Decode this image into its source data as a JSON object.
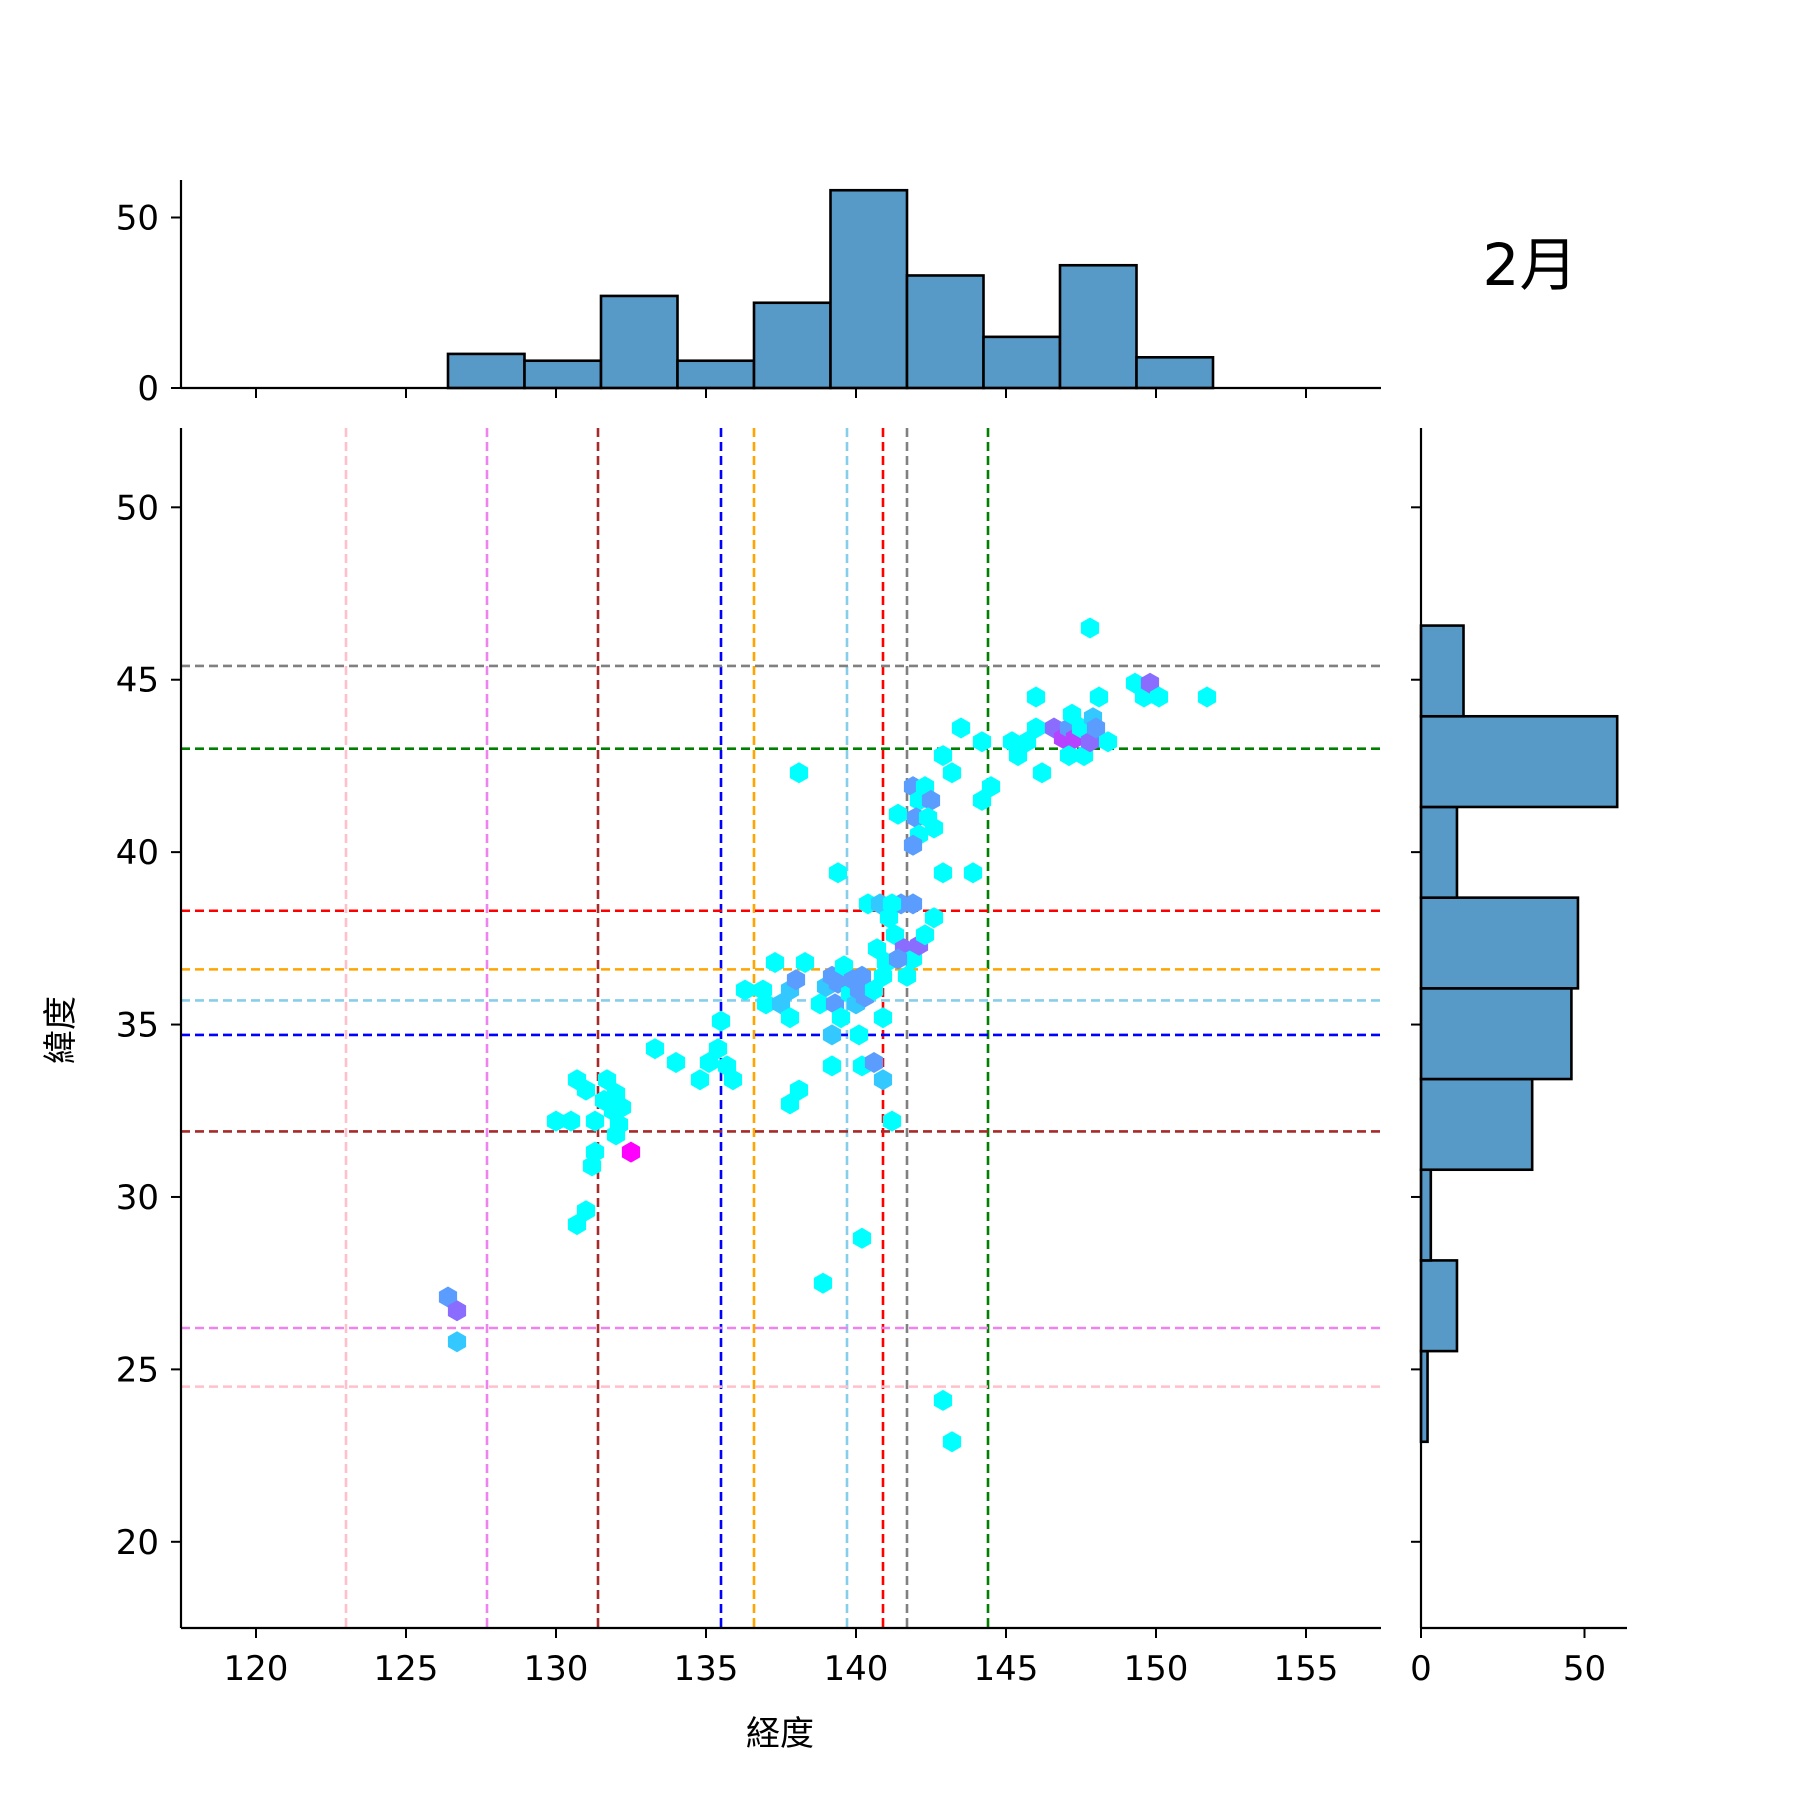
{
  "chart_data": {
    "type": "hexbin",
    "kind": "joint-plot",
    "title": "2月",
    "xlabel": "経度",
    "ylabel": "緯度",
    "xlim": [
      117.5,
      157.5
    ],
    "ylim": [
      17.5,
      52.3
    ],
    "xticks": [
      120,
      125,
      130,
      135,
      140,
      145,
      150,
      155
    ],
    "yticks": [
      20,
      25,
      30,
      35,
      40,
      45,
      50
    ],
    "grid": false,
    "colors": {
      "hist_fill": "#5799c7",
      "hist_edge": "#000000",
      "hex_low": "#00ffff",
      "hex_high": "#ff00ff"
    },
    "reference_lines": [
      {
        "color": "#ffc0cb",
        "x": 123.0,
        "y": 24.5
      },
      {
        "color": "#ee82ee",
        "x": 127.7,
        "y": 26.2
      },
      {
        "color": "#a52a2a",
        "x": 131.4,
        "y": 31.9
      },
      {
        "color": "#0000ff",
        "x": 135.5,
        "y": 34.7
      },
      {
        "color": "#ffa500",
        "x": 136.6,
        "y": 36.6
      },
      {
        "color": "#87ceeb",
        "x": 139.7,
        "y": 35.7
      },
      {
        "color": "#ff0000",
        "x": 140.9,
        "y": 38.3
      },
      {
        "color": "#808080",
        "x": 141.7,
        "y": 45.4
      },
      {
        "color": "#008000",
        "x": 144.4,
        "y": 43.0
      }
    ],
    "top_hist": {
      "yticks": [
        0,
        50
      ],
      "bins": [
        {
          "x0": 126.4,
          "x1": 128.95,
          "count": 10
        },
        {
          "x0": 128.95,
          "x1": 131.5,
          "count": 8
        },
        {
          "x0": 131.5,
          "x1": 134.05,
          "count": 27
        },
        {
          "x0": 134.05,
          "x1": 136.6,
          "count": 8
        },
        {
          "x0": 136.6,
          "x1": 139.15,
          "count": 25
        },
        {
          "x0": 139.15,
          "x1": 141.7,
          "count": 58
        },
        {
          "x0": 141.7,
          "x1": 144.25,
          "count": 33
        },
        {
          "x0": 144.25,
          "x1": 146.8,
          "count": 15
        },
        {
          "x0": 146.8,
          "x1": 149.35,
          "count": 36
        },
        {
          "x0": 149.35,
          "x1": 151.9,
          "count": 9
        }
      ]
    },
    "right_hist": {
      "xticks": [
        0,
        50
      ],
      "bins": [
        {
          "y0": 22.9,
          "y1": 25.53,
          "count": 2
        },
        {
          "y0": 25.53,
          "y1": 28.16,
          "count": 11
        },
        {
          "y0": 28.16,
          "y1": 30.79,
          "count": 3
        },
        {
          "y0": 30.79,
          "y1": 33.42,
          "count": 34
        },
        {
          "y0": 33.42,
          "y1": 36.05,
          "count": 46
        },
        {
          "y0": 36.05,
          "y1": 38.68,
          "count": 48
        },
        {
          "y0": 38.68,
          "y1": 41.31,
          "count": 11
        },
        {
          "y0": 41.31,
          "y1": 43.94,
          "count": 60
        },
        {
          "y0": 43.94,
          "y1": 46.57,
          "count": 13
        }
      ]
    },
    "hexbins": [
      {
        "x": 126.4,
        "y": 27.1,
        "c": 2
      },
      {
        "x": 126.7,
        "y": 26.7,
        "c": 3
      },
      {
        "x": 126.7,
        "y": 25.8,
        "c": 1
      },
      {
        "x": 130.0,
        "y": 32.2,
        "c": 0
      },
      {
        "x": 130.5,
        "y": 32.2,
        "c": 0
      },
      {
        "x": 130.7,
        "y": 33.4,
        "c": 0
      },
      {
        "x": 131.0,
        "y": 33.1,
        "c": 0
      },
      {
        "x": 131.3,
        "y": 32.2,
        "c": 0
      },
      {
        "x": 131.6,
        "y": 32.8,
        "c": 0
      },
      {
        "x": 131.7,
        "y": 33.4,
        "c": 0
      },
      {
        "x": 131.9,
        "y": 32.5,
        "c": 0
      },
      {
        "x": 132.0,
        "y": 33.0,
        "c": 0
      },
      {
        "x": 132.1,
        "y": 32.1,
        "c": 0
      },
      {
        "x": 132.2,
        "y": 32.6,
        "c": 0
      },
      {
        "x": 132.0,
        "y": 31.8,
        "c": 0
      },
      {
        "x": 131.3,
        "y": 31.3,
        "c": 0
      },
      {
        "x": 131.2,
        "y": 30.9,
        "c": 0
      },
      {
        "x": 132.5,
        "y": 31.3,
        "c": 5
      },
      {
        "x": 131.0,
        "y": 29.6,
        "c": 0
      },
      {
        "x": 130.7,
        "y": 29.2,
        "c": 0
      },
      {
        "x": 133.3,
        "y": 34.3,
        "c": 0
      },
      {
        "x": 134.0,
        "y": 33.9,
        "c": 0
      },
      {
        "x": 134.8,
        "y": 33.4,
        "c": 0
      },
      {
        "x": 135.1,
        "y": 33.9,
        "c": 0
      },
      {
        "x": 135.4,
        "y": 34.3,
        "c": 0
      },
      {
        "x": 135.5,
        "y": 35.1,
        "c": 0
      },
      {
        "x": 135.7,
        "y": 33.8,
        "c": 0
      },
      {
        "x": 135.9,
        "y": 33.4,
        "c": 0
      },
      {
        "x": 136.3,
        "y": 36.0,
        "c": 0
      },
      {
        "x": 136.9,
        "y": 36.0,
        "c": 0
      },
      {
        "x": 137.0,
        "y": 35.6,
        "c": 0
      },
      {
        "x": 137.3,
        "y": 36.8,
        "c": 0
      },
      {
        "x": 137.5,
        "y": 35.6,
        "c": 1
      },
      {
        "x": 137.8,
        "y": 36.0,
        "c": 1
      },
      {
        "x": 138.0,
        "y": 36.3,
        "c": 2
      },
      {
        "x": 137.8,
        "y": 35.2,
        "c": 0
      },
      {
        "x": 138.3,
        "y": 36.8,
        "c": 0
      },
      {
        "x": 138.1,
        "y": 42.3,
        "c": 0
      },
      {
        "x": 137.8,
        "y": 32.7,
        "c": 0
      },
      {
        "x": 138.1,
        "y": 33.1,
        "c": 0
      },
      {
        "x": 138.8,
        "y": 35.6,
        "c": 0
      },
      {
        "x": 139.0,
        "y": 36.1,
        "c": 1
      },
      {
        "x": 139.2,
        "y": 36.4,
        "c": 2
      },
      {
        "x": 139.3,
        "y": 35.6,
        "c": 2
      },
      {
        "x": 139.4,
        "y": 36.2,
        "c": 2
      },
      {
        "x": 139.6,
        "y": 36.7,
        "c": 0
      },
      {
        "x": 139.8,
        "y": 35.9,
        "c": 0
      },
      {
        "x": 139.9,
        "y": 36.3,
        "c": 2
      },
      {
        "x": 140.0,
        "y": 35.6,
        "c": 1
      },
      {
        "x": 140.1,
        "y": 36.0,
        "c": 2
      },
      {
        "x": 140.3,
        "y": 35.8,
        "c": 2
      },
      {
        "x": 140.2,
        "y": 36.4,
        "c": 2
      },
      {
        "x": 139.2,
        "y": 34.7,
        "c": 1
      },
      {
        "x": 139.5,
        "y": 35.2,
        "c": 0
      },
      {
        "x": 140.1,
        "y": 34.7,
        "c": 0
      },
      {
        "x": 139.2,
        "y": 33.8,
        "c": 0
      },
      {
        "x": 140.2,
        "y": 33.8,
        "c": 0
      },
      {
        "x": 140.6,
        "y": 33.9,
        "c": 2
      },
      {
        "x": 140.9,
        "y": 33.4,
        "c": 1
      },
      {
        "x": 141.2,
        "y": 32.2,
        "c": 0
      },
      {
        "x": 139.4,
        "y": 39.4,
        "c": 0
      },
      {
        "x": 140.4,
        "y": 38.5,
        "c": 0
      },
      {
        "x": 140.8,
        "y": 38.5,
        "c": 1
      },
      {
        "x": 141.1,
        "y": 38.1,
        "c": 0
      },
      {
        "x": 141.3,
        "y": 37.6,
        "c": 0
      },
      {
        "x": 140.7,
        "y": 37.2,
        "c": 0
      },
      {
        "x": 141.0,
        "y": 36.8,
        "c": 0
      },
      {
        "x": 140.9,
        "y": 36.4,
        "c": 0
      },
      {
        "x": 140.6,
        "y": 36.0,
        "c": 0
      },
      {
        "x": 140.9,
        "y": 35.2,
        "c": 0
      },
      {
        "x": 141.5,
        "y": 38.5,
        "c": 2
      },
      {
        "x": 141.2,
        "y": 38.5,
        "c": 0
      },
      {
        "x": 141.9,
        "y": 38.5,
        "c": 2
      },
      {
        "x": 141.6,
        "y": 37.2,
        "c": 3
      },
      {
        "x": 141.9,
        "y": 36.9,
        "c": 0
      },
      {
        "x": 142.1,
        "y": 37.3,
        "c": 3
      },
      {
        "x": 142.3,
        "y": 37.6,
        "c": 0
      },
      {
        "x": 142.6,
        "y": 38.1,
        "c": 0
      },
      {
        "x": 141.7,
        "y": 36.4,
        "c": 0
      },
      {
        "x": 141.4,
        "y": 36.9,
        "c": 2
      },
      {
        "x": 141.4,
        "y": 41.1,
        "c": 0
      },
      {
        "x": 141.9,
        "y": 41.9,
        "c": 2
      },
      {
        "x": 142.3,
        "y": 41.9,
        "c": 0
      },
      {
        "x": 142.1,
        "y": 41.5,
        "c": 0
      },
      {
        "x": 142.5,
        "y": 41.5,
        "c": 2
      },
      {
        "x": 142.0,
        "y": 41.0,
        "c": 2
      },
      {
        "x": 142.4,
        "y": 41.0,
        "c": 0
      },
      {
        "x": 142.6,
        "y": 40.7,
        "c": 0
      },
      {
        "x": 142.1,
        "y": 40.5,
        "c": 0
      },
      {
        "x": 141.9,
        "y": 40.2,
        "c": 2
      },
      {
        "x": 142.9,
        "y": 39.4,
        "c": 0
      },
      {
        "x": 143.9,
        "y": 39.4,
        "c": 0
      },
      {
        "x": 142.9,
        "y": 42.8,
        "c": 0
      },
      {
        "x": 143.2,
        "y": 42.3,
        "c": 0
      },
      {
        "x": 143.5,
        "y": 43.6,
        "c": 0
      },
      {
        "x": 144.2,
        "y": 43.2,
        "c": 0
      },
      {
        "x": 144.5,
        "y": 41.9,
        "c": 0
      },
      {
        "x": 144.2,
        "y": 41.5,
        "c": 0
      },
      {
        "x": 145.2,
        "y": 43.2,
        "c": 0
      },
      {
        "x": 145.4,
        "y": 42.8,
        "c": 0
      },
      {
        "x": 145.7,
        "y": 43.2,
        "c": 0
      },
      {
        "x": 146.0,
        "y": 43.6,
        "c": 0
      },
      {
        "x": 146.0,
        "y": 44.5,
        "c": 0
      },
      {
        "x": 146.2,
        "y": 42.3,
        "c": 0
      },
      {
        "x": 146.6,
        "y": 43.6,
        "c": 3
      },
      {
        "x": 146.9,
        "y": 43.3,
        "c": 4
      },
      {
        "x": 147.1,
        "y": 43.6,
        "c": 2
      },
      {
        "x": 147.2,
        "y": 44.0,
        "c": 0
      },
      {
        "x": 147.1,
        "y": 42.8,
        "c": 0
      },
      {
        "x": 147.3,
        "y": 43.3,
        "c": 4
      },
      {
        "x": 147.5,
        "y": 43.6,
        "c": 0
      },
      {
        "x": 147.6,
        "y": 42.8,
        "c": 0
      },
      {
        "x": 147.8,
        "y": 43.2,
        "c": 3
      },
      {
        "x": 147.9,
        "y": 43.9,
        "c": 1
      },
      {
        "x": 148.0,
        "y": 43.6,
        "c": 2
      },
      {
        "x": 148.1,
        "y": 44.5,
        "c": 0
      },
      {
        "x": 148.4,
        "y": 43.2,
        "c": 0
      },
      {
        "x": 147.8,
        "y": 46.5,
        "c": 0
      },
      {
        "x": 149.3,
        "y": 44.9,
        "c": 0
      },
      {
        "x": 149.6,
        "y": 44.5,
        "c": 0
      },
      {
        "x": 149.8,
        "y": 44.9,
        "c": 3
      },
      {
        "x": 150.1,
        "y": 44.5,
        "c": 0
      },
      {
        "x": 151.7,
        "y": 44.5,
        "c": 0
      },
      {
        "x": 138.9,
        "y": 27.5,
        "c": 0
      },
      {
        "x": 140.2,
        "y": 28.8,
        "c": 0
      },
      {
        "x": 142.9,
        "y": 24.1,
        "c": 0
      },
      {
        "x": 143.2,
        "y": 22.9,
        "c": 0
      }
    ]
  }
}
